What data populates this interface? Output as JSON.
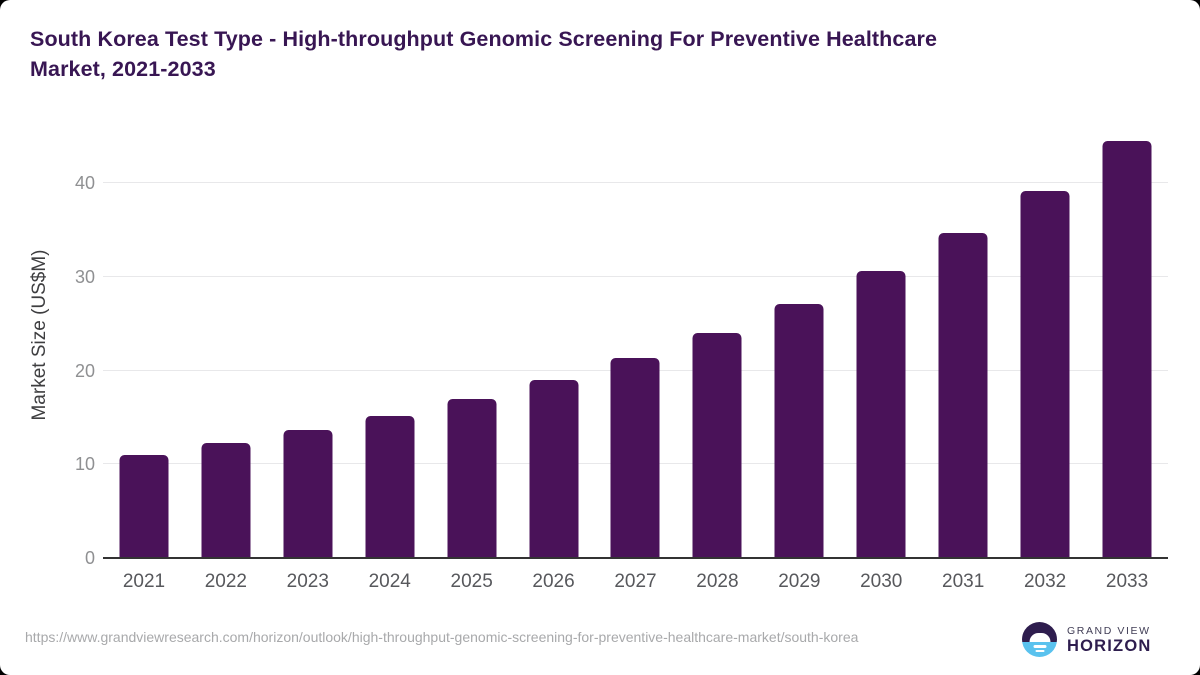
{
  "title": {
    "line1": "South Korea Test Type - High-throughput Genomic Screening For Preventive Healthcare",
    "line2": "Market, 2021-2033"
  },
  "chart_data": {
    "type": "bar",
    "title": "South Korea Test Type - High-throughput Genomic Screening For Preventive Healthcare Market, 2021-2033",
    "categories": [
      "2021",
      "2022",
      "2023",
      "2024",
      "2025",
      "2026",
      "2027",
      "2028",
      "2029",
      "2030",
      "2031",
      "2032",
      "2033"
    ],
    "values": [
      11.0,
      12.3,
      13.7,
      15.2,
      17.0,
      19.0,
      21.4,
      24.0,
      27.1,
      30.6,
      34.7,
      39.2,
      44.5
    ],
    "xlabel": "",
    "ylabel": "Market Size (US$M)",
    "yticks": [
      0,
      10,
      20,
      30,
      40
    ],
    "ylim": [
      0,
      45.7
    ],
    "grid": true,
    "legend": false,
    "bar_color": "#4a1259"
  },
  "footer": {
    "source_url": "https://www.grandviewresearch.com/horizon/outlook/high-throughput-genomic-screening-for-preventive-healthcare-market/south-korea",
    "logo": {
      "top_text": "GRAND VIEW",
      "bottom_text": "HORIZON"
    }
  }
}
